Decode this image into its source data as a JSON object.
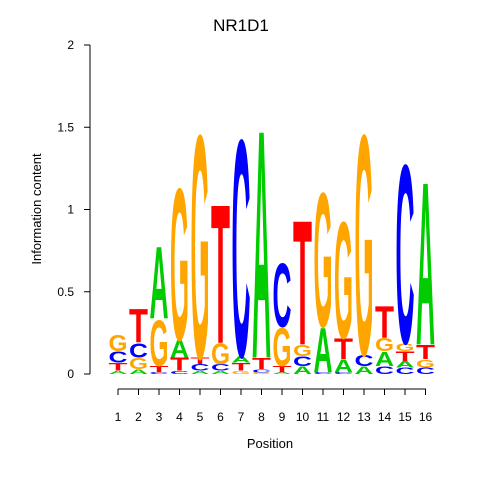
{
  "chart_data": {
    "type": "sequence-logo",
    "title": "NR1D1",
    "xlabel": "Position",
    "ylabel": "Information content",
    "ylim": [
      0,
      2
    ],
    "yticks": [
      "0",
      "0.5",
      "1",
      "1.5",
      "2"
    ],
    "xticks": [
      "1",
      "2",
      "3",
      "4",
      "5",
      "6",
      "7",
      "8",
      "9",
      "10",
      "11",
      "12",
      "13",
      "14",
      "15",
      "16"
    ],
    "colors": {
      "A": "#00cc00",
      "C": "#0000ff",
      "G": "#ffa500",
      "T": "#ff0000"
    },
    "positions": [
      [
        [
          "A",
          0.02
        ],
        [
          "T",
          0.05
        ],
        [
          "C",
          0.07
        ],
        [
          "G",
          0.1
        ]
      ],
      [
        [
          "A",
          0.03
        ],
        [
          "G",
          0.07
        ],
        [
          "C",
          0.09
        ],
        [
          "T",
          0.21
        ]
      ],
      [
        [
          "C",
          0.01
        ],
        [
          "T",
          0.04
        ],
        [
          "G",
          0.29
        ],
        [
          "A",
          0.45
        ]
      ],
      [
        [
          "C",
          0.02
        ],
        [
          "T",
          0.08
        ],
        [
          "A",
          0.11
        ],
        [
          "G",
          0.95
        ]
      ],
      [
        [
          "A",
          0.02
        ],
        [
          "C",
          0.04
        ],
        [
          "T",
          0.04
        ],
        [
          "G",
          1.4
        ]
      ],
      [
        [
          "A",
          0.02
        ],
        [
          "C",
          0.04
        ],
        [
          "G",
          0.13
        ],
        [
          "T",
          0.87
        ]
      ],
      [
        [
          "G",
          0.02
        ],
        [
          "T",
          0.05
        ],
        [
          "A",
          0.04
        ],
        [
          "C",
          1.36
        ]
      ],
      [
        [
          "G",
          0.01
        ],
        [
          "C",
          0.02
        ],
        [
          "T",
          0.07
        ],
        [
          "A",
          1.43
        ]
      ],
      [
        [
          "A",
          0.01
        ],
        [
          "T",
          0.04
        ],
        [
          "G",
          0.24
        ],
        [
          "C",
          0.4
        ]
      ],
      [
        [
          "A",
          0.05
        ],
        [
          "C",
          0.06
        ],
        [
          "G",
          0.07
        ],
        [
          "T",
          0.78
        ]
      ],
      [
        [
          "C",
          0.01
        ],
        [
          "A",
          0.28
        ],
        [
          "G",
          0.84
        ]
      ],
      [
        [
          "C",
          0.01
        ],
        [
          "A",
          0.08
        ],
        [
          "T",
          0.13
        ],
        [
          "G",
          0.73
        ]
      ],
      [
        [
          "A",
          0.05
        ],
        [
          "C",
          0.07
        ],
        [
          "G",
          1.38
        ]
      ],
      [
        [
          "C",
          0.05
        ],
        [
          "A",
          0.09
        ],
        [
          "G",
          0.08
        ],
        [
          "T",
          0.2
        ]
      ],
      [
        [
          "C",
          0.04
        ],
        [
          "A",
          0.04
        ],
        [
          "T",
          0.06
        ],
        [
          "G",
          0.05
        ],
        [
          "C",
          1.12
        ]
      ],
      [
        [
          "C",
          0.04
        ],
        [
          "G",
          0.05
        ],
        [
          "T",
          0.09
        ],
        [
          "A",
          1.02
        ]
      ]
    ]
  }
}
